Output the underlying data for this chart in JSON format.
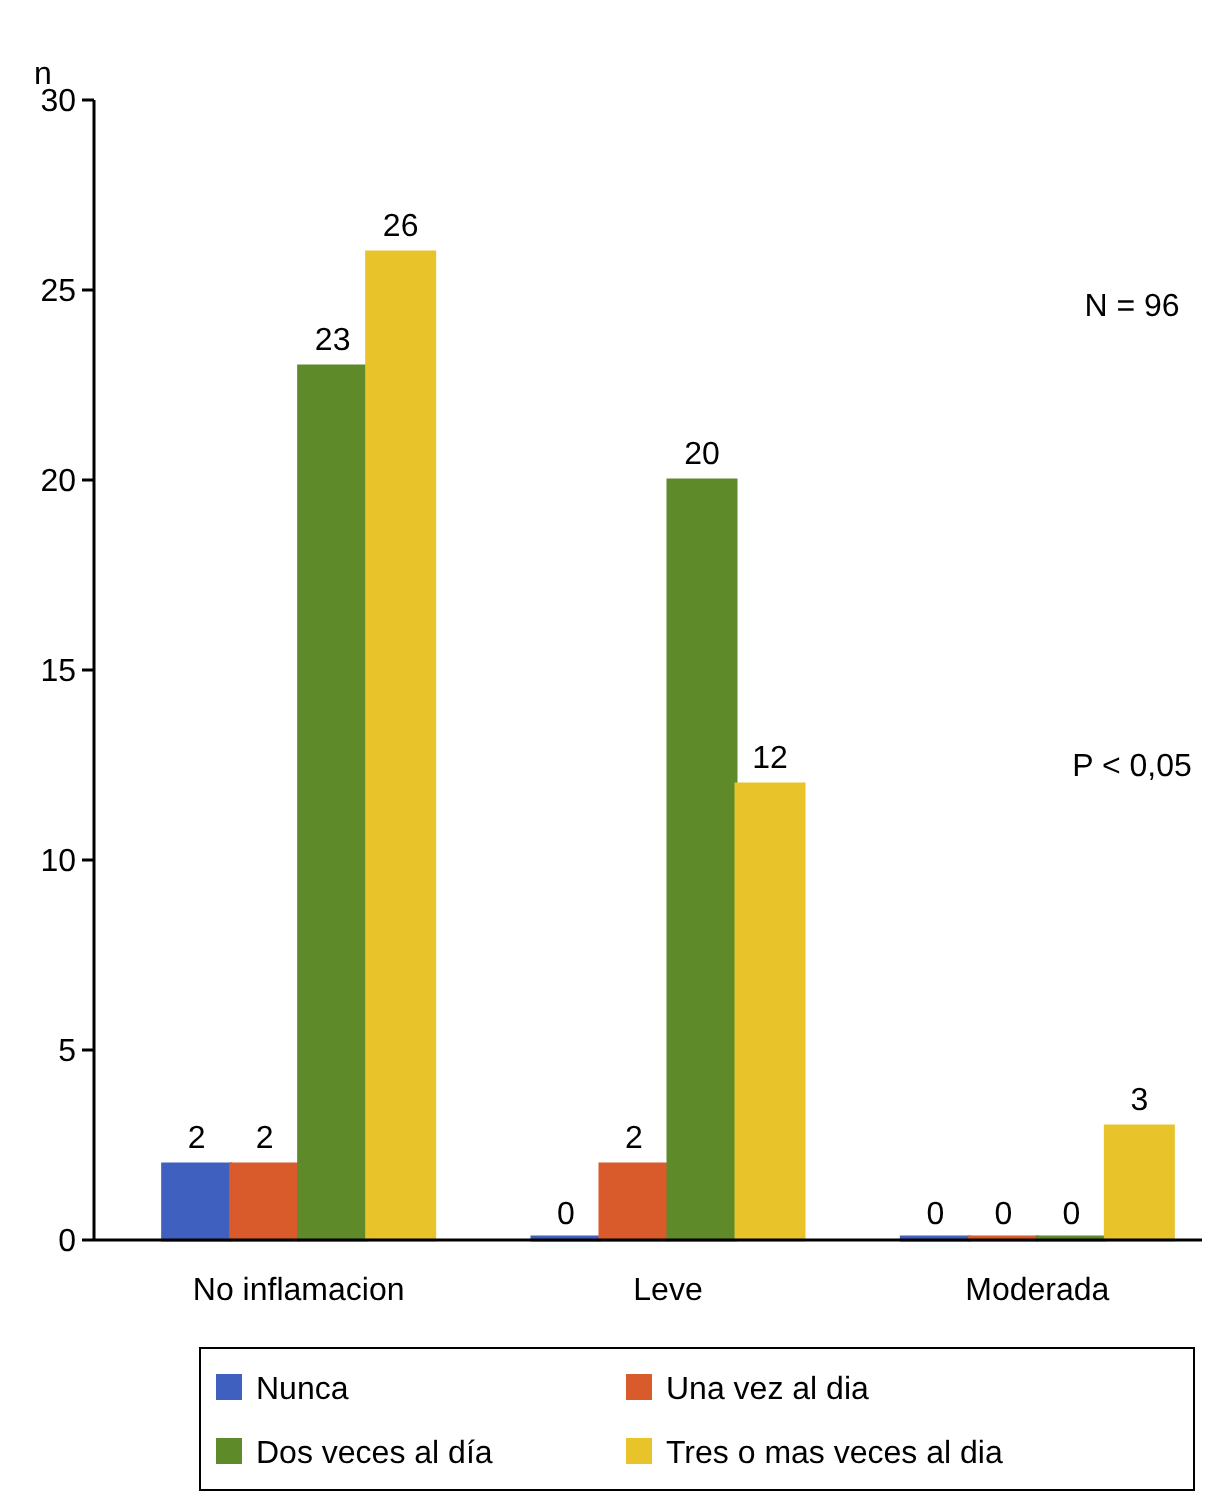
{
  "chart_data": {
    "type": "bar",
    "ylabel": "n",
    "categories": [
      "No inflamacion",
      "Leve",
      "Moderada"
    ],
    "series": [
      {
        "name": "Nunca",
        "color": "#4060c0",
        "values": [
          2,
          0,
          0
        ]
      },
      {
        "name": "Una vez al dia",
        "color": "#d95a2b",
        "values": [
          2,
          2,
          0
        ]
      },
      {
        "name": "Dos veces al día",
        "color": "#5f8a2a",
        "values": [
          23,
          20,
          0
        ]
      },
      {
        "name": "Tres o mas veces al dia",
        "color": "#e8c32a",
        "values": [
          26,
          12,
          3
        ]
      }
    ],
    "ylim": [
      0,
      30
    ],
    "yticks": [
      0,
      5,
      10,
      15,
      20,
      25,
      30
    ],
    "grid": false,
    "legend": "bottom",
    "data_labels": true,
    "annotations": [
      "N = 96",
      "P < 0,05"
    ]
  }
}
